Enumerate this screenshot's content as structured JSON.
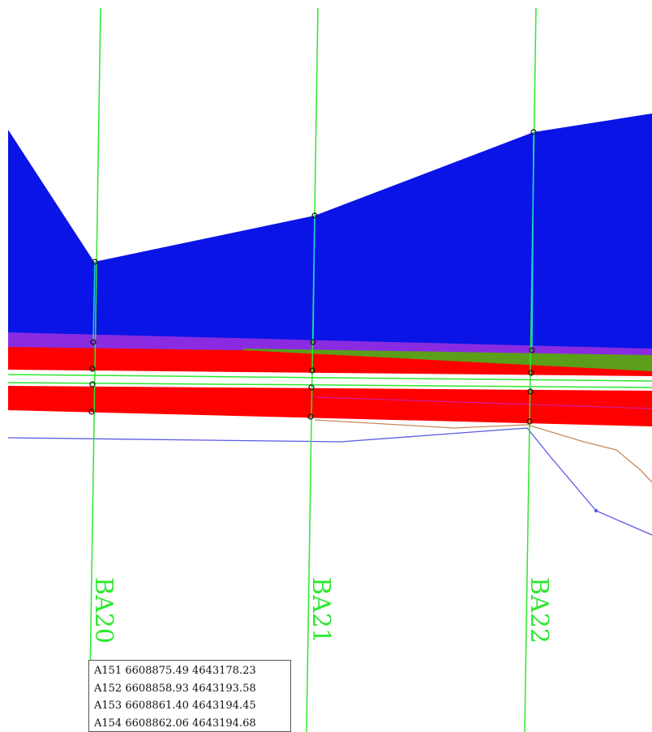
{
  "sections": [
    {
      "label": "BA20"
    },
    {
      "label": "BA21"
    },
    {
      "label": "BA22"
    }
  ],
  "colors": {
    "section_line": "#2ee82e",
    "water_fill": "#0a14e6",
    "red_band": "#ff0000",
    "green_band": "#5a9e1a",
    "purple_band": "#8a2be2",
    "blue_profile": "#5a5ae6",
    "orange_profile": "#c8895a"
  },
  "coordinates": [
    {
      "text": "A151 6608875.49 4643178.23"
    },
    {
      "text": "A152 6608858.93 4643193.58"
    },
    {
      "text": "A153 6608861.40 4643194.45"
    },
    {
      "text": "A154 6608862.06 4643194.68"
    }
  ]
}
